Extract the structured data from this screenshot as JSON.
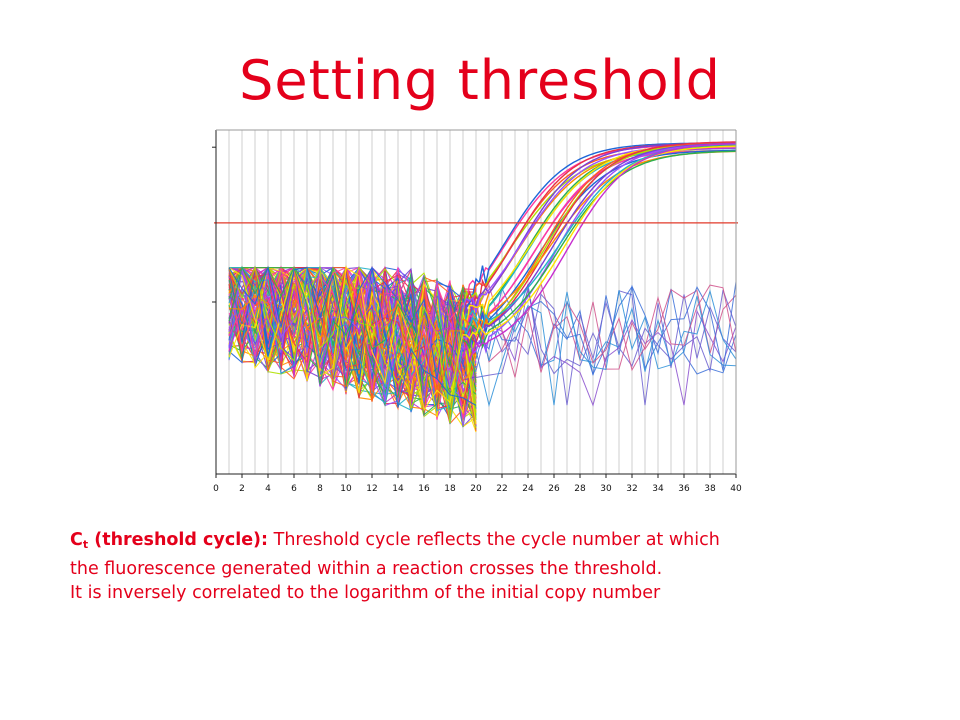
{
  "slide": {
    "title": "Setting threshold",
    "caption": {
      "term_c": "C",
      "term_sub": "t",
      "term_rest": " (threshold cycle):",
      "line1": " Threshold cycle reflects the cycle number at which",
      "line2": "the fluorescence generated within a reaction crosses the threshold.",
      "line3": "It is inversely correlated to the logarithm of the initial copy number"
    }
  },
  "chart_data": {
    "type": "line",
    "xlim": [
      0,
      40
    ],
    "ylim": [
      0,
      1
    ],
    "x_ticks": [
      "0",
      "2",
      "4",
      "6",
      "8",
      "10",
      "12",
      "14",
      "16",
      "18",
      "20",
      "22",
      "24",
      "26",
      "28",
      "30",
      "32",
      "34",
      "36",
      "38",
      "40"
    ],
    "grid": "vertical",
    "threshold": 0.73,
    "colors": {
      "threshold": "#e23a2a",
      "grid": "#cfcfcf",
      "series_palette": [
        "#ff3aa0",
        "#ff8a00",
        "#ffe400",
        "#b0e000",
        "#2fb04c",
        "#1e66d8",
        "#7a3fd6",
        "#c72ecf",
        "#e8304a",
        "#23b3c8",
        "#ff5f1f",
        "#9a50ff"
      ]
    },
    "series_groups": [
      {
        "kind": "amplifying",
        "count": 24,
        "ct_range": [
          20.5,
          25.5
        ],
        "plateau": 0.97
      },
      {
        "kind": "background-noise",
        "count": 150,
        "x_range": [
          1,
          20
        ],
        "y_range": [
          0.05,
          0.6
        ]
      },
      {
        "kind": "negative-noise",
        "count": 9,
        "x_range": [
          20,
          40
        ],
        "y_range": [
          0.25,
          0.55
        ]
      }
    ]
  }
}
